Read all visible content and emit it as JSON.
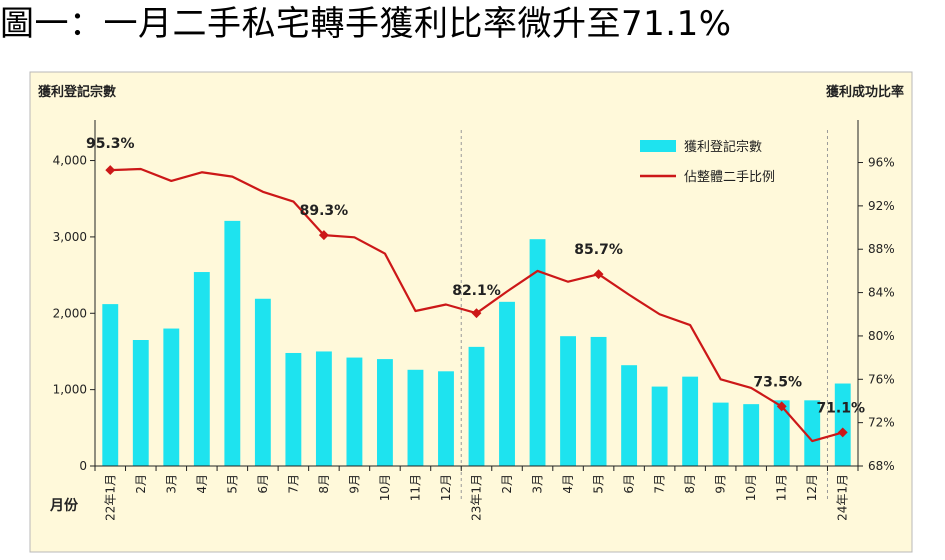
{
  "page_title": "圖一：一月二手私宅轉手獲利比率微升至71.1%",
  "colors": {
    "panel_bg": "#fff9da",
    "panel_border": "#b8b8b8",
    "bar": "#1ee3ef",
    "line": "#cc1818",
    "axis": "#222222",
    "divider": "#9a9a9a"
  },
  "chart_data": {
    "type": "bar+line",
    "left_axis_title": "獲利登記宗數",
    "right_axis_title": "獲利成功比率",
    "x_axis_title": "月份",
    "categories": [
      "22年1月",
      "2月",
      "3月",
      "4月",
      "5月",
      "6月",
      "7月",
      "8月",
      "9月",
      "10月",
      "11月",
      "12月",
      "23年1月",
      "2月",
      "3月",
      "4月",
      "5月",
      "6月",
      "7月",
      "8月",
      "9月",
      "10月",
      "11月",
      "12月",
      "24年1月"
    ],
    "y_left": {
      "min": 0,
      "max": 4400,
      "ticks": [
        0,
        1000,
        2000,
        3000,
        4000
      ],
      "tick_labels": [
        "0",
        "1,000",
        "2,000",
        "3,000",
        "4,000"
      ]
    },
    "y_right": {
      "min": 68,
      "max": 99,
      "ticks": [
        68,
        72,
        76,
        80,
        84,
        88,
        92,
        96
      ],
      "tick_labels": [
        "68%",
        "72%",
        "76%",
        "80%",
        "84%",
        "88%",
        "92%",
        "96%"
      ]
    },
    "year_dividers_after_index": [
      11,
      23
    ],
    "series": [
      {
        "name": "獲利登記宗數",
        "type": "bar",
        "values": [
          2120,
          1650,
          1800,
          2540,
          3210,
          2190,
          1480,
          1500,
          1420,
          1400,
          1260,
          1240,
          1560,
          2150,
          2970,
          1700,
          1690,
          1320,
          1040,
          1170,
          830,
          810,
          860,
          860,
          1080
        ]
      },
      {
        "name": "佔整體二手比例",
        "type": "line",
        "values": [
          95.3,
          95.4,
          94.3,
          95.1,
          94.7,
          93.3,
          92.4,
          89.3,
          89.1,
          87.6,
          82.3,
          82.9,
          82.1,
          84.1,
          86.0,
          85.0,
          85.7,
          83.8,
          82.0,
          81.0,
          76.0,
          75.2,
          73.5,
          70.3,
          71.1
        ]
      }
    ],
    "annotations": [
      {
        "index": 0,
        "label": "95.3%"
      },
      {
        "index": 7,
        "label": "89.3%"
      },
      {
        "index": 12,
        "label": "82.1%"
      },
      {
        "index": 16,
        "label": "85.7%"
      },
      {
        "index": 22,
        "label": "73.5%"
      },
      {
        "index": 24,
        "label": "71.1%"
      }
    ]
  }
}
